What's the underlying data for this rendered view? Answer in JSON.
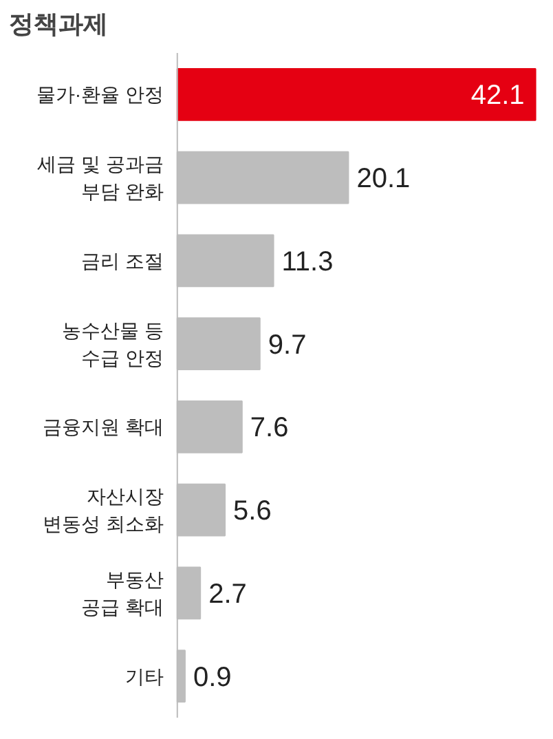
{
  "chart_data": {
    "type": "bar",
    "orientation": "horizontal",
    "title": "정책과제",
    "categories": [
      "물가·환율 안정",
      "세금 및 공과금\n부담 완화",
      "금리 조절",
      "농수산물 등\n수급 안정",
      "금융지원 확대",
      "자산시장\n변동성 최소화",
      "부동산\n공급 확대",
      "기타"
    ],
    "values": [
      42.1,
      20.1,
      11.3,
      9.7,
      7.6,
      5.6,
      2.7,
      0.9
    ],
    "colors": [
      "#e50012",
      "#bdbdbd",
      "#bdbdbd",
      "#bdbdbd",
      "#bdbdbd",
      "#bdbdbd",
      "#bdbdbd",
      "#bdbdbd"
    ],
    "data_labels": true
  }
}
